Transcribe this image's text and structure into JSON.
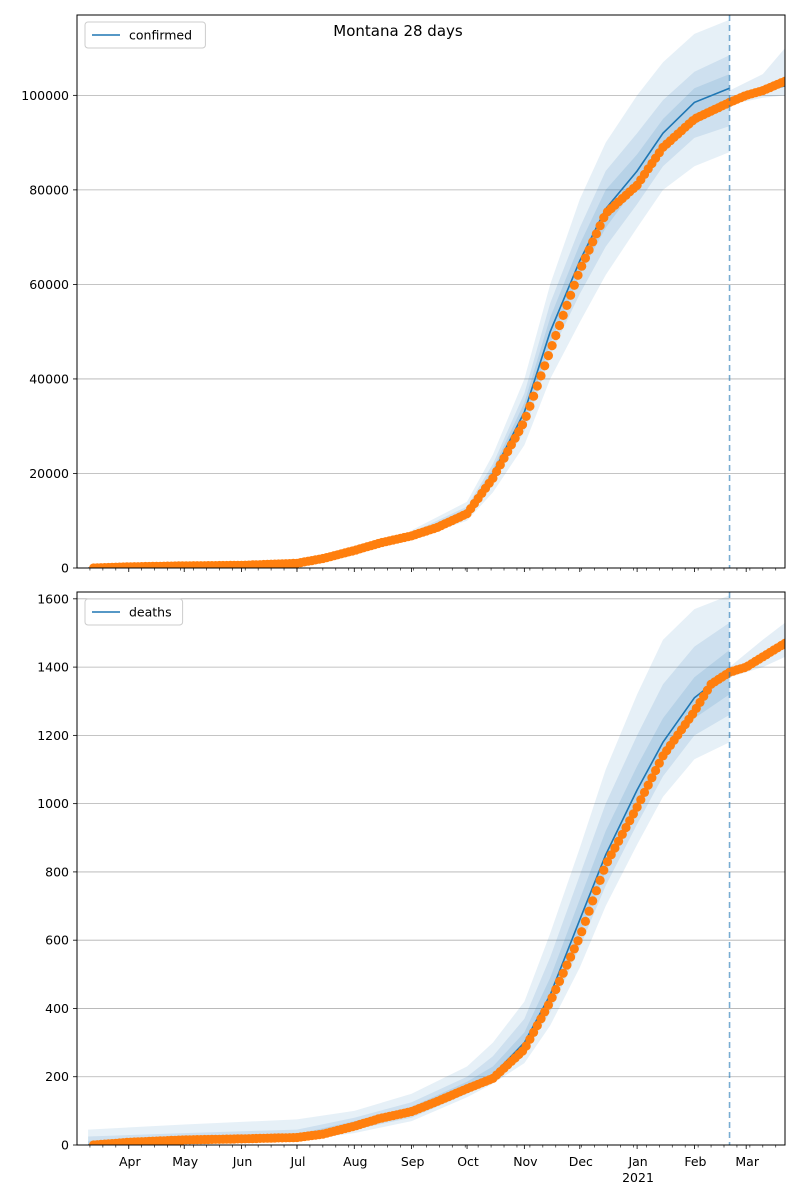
{
  "figure": {
    "title": "Montana 28 days"
  },
  "colors": {
    "model_line": "#1f77b4",
    "observed": "#ff7f0e",
    "band": "#1f77b4",
    "grid": "#b0b0b0",
    "vline": "#1f77b4"
  },
  "chart_data": [
    {
      "type": "line",
      "name": "confirmed-panel",
      "legend": {
        "label": "confirmed",
        "placement": "top-left"
      },
      "ylim": [
        0,
        117000
      ],
      "yticks": [
        0,
        20000,
        40000,
        60000,
        80000,
        100000
      ],
      "ytick_labels": [
        "0",
        "20000",
        "40000",
        "60000",
        "80000",
        "100000"
      ],
      "grid": "horizontal",
      "series": [
        {
          "name": "confirmed",
          "kind": "model",
          "points": [
            [
              "2020-03-10",
              0
            ],
            [
              "2020-04-01",
              200
            ],
            [
              "2020-05-01",
              450
            ],
            [
              "2020-06-01",
              550
            ],
            [
              "2020-07-01",
              1000
            ],
            [
              "2020-07-15",
              2000
            ],
            [
              "2020-08-01",
              3800
            ],
            [
              "2020-08-15",
              5500
            ],
            [
              "2020-09-01",
              7000
            ],
            [
              "2020-09-15",
              8800
            ],
            [
              "2020-10-01",
              12000
            ],
            [
              "2020-10-15",
              20000
            ],
            [
              "2020-11-01",
              33000
            ],
            [
              "2020-11-15",
              50000
            ],
            [
              "2020-12-01",
              65000
            ],
            [
              "2020-12-15",
              76000
            ],
            [
              "2021-01-01",
              84000
            ],
            [
              "2021-01-15",
              92000
            ],
            [
              "2021-02-01",
              98500
            ],
            [
              "2021-02-20",
              101500
            ]
          ]
        },
        {
          "name": "confirmed-forecast",
          "kind": "forecast",
          "points": [
            [
              "2021-02-20",
              99000
            ],
            [
              "2021-03-01",
              100200
            ],
            [
              "2021-03-10",
              101000
            ],
            [
              "2021-03-22",
              102000
            ]
          ]
        }
      ],
      "bands": [
        {
          "level": "outer",
          "points": [
            [
              "2020-09-01",
              6000,
              8000
            ],
            [
              "2020-10-01",
              10000,
              14000
            ],
            [
              "2020-10-15",
              16000,
              24000
            ],
            [
              "2020-11-01",
              26000,
              40000
            ],
            [
              "2020-11-15",
              40000,
              60000
            ],
            [
              "2020-12-01",
              52000,
              78000
            ],
            [
              "2020-12-15",
              62000,
              90000
            ],
            [
              "2021-01-01",
              72000,
              100000
            ],
            [
              "2021-01-15",
              80000,
              107000
            ],
            [
              "2021-02-01",
              85000,
              113000
            ],
            [
              "2021-02-20",
              88000,
              116000
            ]
          ]
        },
        {
          "level": "middle",
          "points": [
            [
              "2020-09-01",
              6500,
              7500
            ],
            [
              "2020-10-01",
              11000,
              13000
            ],
            [
              "2020-10-15",
              18000,
              22000
            ],
            [
              "2020-11-01",
              29000,
              37000
            ],
            [
              "2020-11-15",
              45000,
              56000
            ],
            [
              "2020-12-01",
              58000,
              72000
            ],
            [
              "2020-12-15",
              68000,
              84000
            ],
            [
              "2021-01-01",
              77000,
              92000
            ],
            [
              "2021-01-15",
              85000,
              99000
            ],
            [
              "2021-02-01",
              91000,
              105000
            ],
            [
              "2021-02-20",
              93500,
              108500
            ]
          ]
        },
        {
          "level": "inner",
          "points": [
            [
              "2020-09-01",
              6800,
              7200
            ],
            [
              "2020-10-01",
              11500,
              12500
            ],
            [
              "2020-10-15",
              19000,
              21000
            ],
            [
              "2020-11-01",
              31000,
              35000
            ],
            [
              "2020-11-15",
              47500,
              53000
            ],
            [
              "2020-12-01",
              62000,
              68500
            ],
            [
              "2020-12-15",
              72000,
              80000
            ],
            [
              "2021-01-01",
              81000,
              87500
            ],
            [
              "2021-01-15",
              89000,
              95000
            ],
            [
              "2021-02-01",
              95000,
              101500
            ],
            [
              "2021-02-20",
              98000,
              104500
            ]
          ]
        },
        {
          "level": "forecast",
          "points": [
            [
              "2021-02-20",
              98000,
              101000
            ],
            [
              "2021-03-10",
              99500,
              104500
            ],
            [
              "2021-03-22",
              100000,
              110000
            ]
          ]
        }
      ],
      "observed": {
        "name": "observed-confirmed",
        "start": "2020-03-13",
        "end": "2021-03-22",
        "step_days": 2,
        "anchors": [
          [
            "2020-03-13",
            10
          ],
          [
            "2020-04-01",
            250
          ],
          [
            "2020-05-01",
            460
          ],
          [
            "2020-06-01",
            560
          ],
          [
            "2020-07-01",
            1000
          ],
          [
            "2020-07-15",
            2000
          ],
          [
            "2020-08-01",
            3700
          ],
          [
            "2020-08-15",
            5300
          ],
          [
            "2020-09-01",
            6800
          ],
          [
            "2020-09-15",
            8600
          ],
          [
            "2020-10-01",
            11500
          ],
          [
            "2020-10-15",
            19000
          ],
          [
            "2020-11-01",
            31000
          ],
          [
            "2020-11-15",
            46000
          ],
          [
            "2020-12-01",
            63000
          ],
          [
            "2020-12-15",
            75000
          ],
          [
            "2021-01-01",
            81000
          ],
          [
            "2021-01-15",
            89000
          ],
          [
            "2021-02-01",
            95000
          ],
          [
            "2021-02-20",
            98500
          ],
          [
            "2021-03-01",
            100000
          ],
          [
            "2021-03-10",
            101000
          ],
          [
            "2021-03-22",
            103000
          ]
        ]
      },
      "vline": "2021-02-20"
    },
    {
      "type": "line",
      "name": "deaths-panel",
      "legend": {
        "label": "deaths",
        "placement": "top-left"
      },
      "ylim": [
        0,
        1620
      ],
      "yticks": [
        0,
        200,
        400,
        600,
        800,
        1000,
        1200,
        1400,
        1600
      ],
      "ytick_labels": [
        "0",
        "200",
        "400",
        "600",
        "800",
        "1000",
        "1200",
        "1400",
        "1600"
      ],
      "grid": "horizontal",
      "series": [
        {
          "name": "deaths",
          "kind": "model",
          "points": [
            [
              "2020-03-10",
              0
            ],
            [
              "2020-04-01",
              8
            ],
            [
              "2020-05-01",
              15
            ],
            [
              "2020-06-01",
              20
            ],
            [
              "2020-07-01",
              25
            ],
            [
              "2020-07-15",
              35
            ],
            [
              "2020-08-01",
              60
            ],
            [
              "2020-08-15",
              80
            ],
            [
              "2020-09-01",
              100
            ],
            [
              "2020-09-15",
              130
            ],
            [
              "2020-10-01",
              170
            ],
            [
              "2020-10-15",
              205
            ],
            [
              "2020-11-01",
              300
            ],
            [
              "2020-11-15",
              440
            ],
            [
              "2020-12-01",
              660
            ],
            [
              "2020-12-15",
              850
            ],
            [
              "2021-01-01",
              1040
            ],
            [
              "2021-01-15",
              1180
            ],
            [
              "2021-02-01",
              1310
            ],
            [
              "2021-02-20",
              1390
            ]
          ]
        },
        {
          "name": "deaths-forecast",
          "kind": "forecast",
          "points": [
            [
              "2021-02-20",
              1380
            ],
            [
              "2021-03-01",
              1400
            ],
            [
              "2021-03-10",
              1430
            ],
            [
              "2021-03-22",
              1470
            ]
          ]
        }
      ],
      "bands": [
        {
          "level": "outer",
          "points": [
            [
              "2020-03-10",
              0,
              45
            ],
            [
              "2020-05-01",
              5,
              60
            ],
            [
              "2020-07-01",
              12,
              75
            ],
            [
              "2020-08-01",
              35,
              100
            ],
            [
              "2020-09-01",
              70,
              150
            ],
            [
              "2020-10-01",
              140,
              230
            ],
            [
              "2020-10-15",
              180,
              300
            ],
            [
              "2020-11-01",
              240,
              420
            ],
            [
              "2020-11-15",
              350,
              620
            ],
            [
              "2020-12-01",
              520,
              870
            ],
            [
              "2020-12-15",
              700,
              1100
            ],
            [
              "2021-01-01",
              880,
              1320
            ],
            [
              "2021-01-15",
              1020,
              1480
            ],
            [
              "2021-02-01",
              1130,
              1570
            ],
            [
              "2021-02-20",
              1180,
              1610
            ]
          ]
        },
        {
          "level": "middle",
          "points": [
            [
              "2020-03-10",
              0,
              25
            ],
            [
              "2020-05-01",
              8,
              35
            ],
            [
              "2020-07-01",
              16,
              45
            ],
            [
              "2020-08-01",
              45,
              80
            ],
            [
              "2020-09-01",
              80,
              125
            ],
            [
              "2020-10-01",
              150,
              200
            ],
            [
              "2020-10-15",
              190,
              260
            ],
            [
              "2020-11-01",
              265,
              370
            ],
            [
              "2020-11-15",
              390,
              550
            ],
            [
              "2020-12-01",
              580,
              790
            ],
            [
              "2020-12-15",
              760,
              1000
            ],
            [
              "2021-01-01",
              940,
              1200
            ],
            [
              "2021-01-15",
              1080,
              1350
            ],
            [
              "2021-02-01",
              1200,
              1460
            ],
            [
              "2021-02-20",
              1260,
              1530
            ]
          ]
        },
        {
          "level": "inner",
          "points": [
            [
              "2020-03-10",
              0,
              12
            ],
            [
              "2020-05-01",
              10,
              22
            ],
            [
              "2020-07-01",
              20,
              32
            ],
            [
              "2020-08-01",
              52,
              70
            ],
            [
              "2020-09-01",
              90,
              112
            ],
            [
              "2020-10-01",
              160,
              185
            ],
            [
              "2020-10-15",
              195,
              230
            ],
            [
              "2020-11-01",
              280,
              330
            ],
            [
              "2020-11-15",
              420,
              490
            ],
            [
              "2020-12-01",
              620,
              720
            ],
            [
              "2020-12-15",
              800,
              920
            ],
            [
              "2021-01-01",
              990,
              1110
            ],
            [
              "2021-01-15",
              1130,
              1250
            ],
            [
              "2021-02-01",
              1250,
              1370
            ],
            [
              "2021-02-20",
              1320,
              1450
            ]
          ]
        },
        {
          "level": "forecast",
          "points": [
            [
              "2021-02-20",
              1370,
              1400
            ],
            [
              "2021-03-10",
              1400,
              1480
            ],
            [
              "2021-03-22",
              1430,
              1530
            ]
          ]
        }
      ],
      "observed": {
        "name": "observed-deaths",
        "start": "2020-03-13",
        "end": "2021-03-22",
        "step_days": 2,
        "anchors": [
          [
            "2020-03-13",
            0
          ],
          [
            "2020-04-01",
            8
          ],
          [
            "2020-05-01",
            15
          ],
          [
            "2020-06-01",
            18
          ],
          [
            "2020-07-01",
            22
          ],
          [
            "2020-07-15",
            32
          ],
          [
            "2020-08-01",
            55
          ],
          [
            "2020-08-15",
            78
          ],
          [
            "2020-09-01",
            98
          ],
          [
            "2020-09-15",
            128
          ],
          [
            "2020-10-01",
            165
          ],
          [
            "2020-10-15",
            195
          ],
          [
            "2020-11-01",
            280
          ],
          [
            "2020-11-15",
            420
          ],
          [
            "2020-12-01",
            610
          ],
          [
            "2020-12-15",
            820
          ],
          [
            "2021-01-01",
            990
          ],
          [
            "2021-01-15",
            1140
          ],
          [
            "2021-02-01",
            1270
          ],
          [
            "2021-02-10",
            1350
          ],
          [
            "2021-02-20",
            1385
          ],
          [
            "2021-03-01",
            1400
          ],
          [
            "2021-03-10",
            1430
          ],
          [
            "2021-03-22",
            1470
          ]
        ]
      },
      "vline": "2021-02-20"
    }
  ],
  "xaxis": {
    "range": [
      "2020-03-04",
      "2021-03-22"
    ],
    "month_ticks": [
      {
        "date": "2020-04-01",
        "label": "Apr"
      },
      {
        "date": "2020-05-01",
        "label": "May"
      },
      {
        "date": "2020-06-01",
        "label": "Jun"
      },
      {
        "date": "2020-07-01",
        "label": "Jul"
      },
      {
        "date": "2020-08-01",
        "label": "Aug"
      },
      {
        "date": "2020-09-01",
        "label": "Sep"
      },
      {
        "date": "2020-10-01",
        "label": "Oct"
      },
      {
        "date": "2020-11-01",
        "label": "Nov"
      },
      {
        "date": "2020-12-01",
        "label": "Dec"
      },
      {
        "date": "2021-01-01",
        "label": "Jan"
      },
      {
        "date": "2021-02-01",
        "label": "Feb"
      },
      {
        "date": "2021-03-01",
        "label": "Mar"
      }
    ],
    "year_label": "2021"
  }
}
